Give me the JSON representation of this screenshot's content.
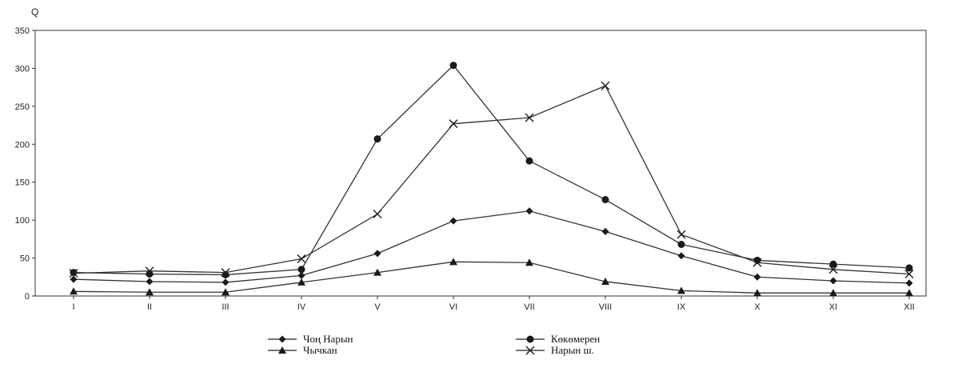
{
  "chart_data": {
    "type": "line",
    "title": "",
    "xlabel": "",
    "ylabel": "Q",
    "ylim": [
      0,
      350
    ],
    "yticks": [
      0,
      50,
      100,
      150,
      200,
      250,
      300,
      350
    ],
    "grid": false,
    "legend_position": "bottom",
    "categories": [
      "I",
      "II",
      "III",
      "IV",
      "V",
      "VI",
      "VII",
      "VIII",
      "IX",
      "X",
      "XI",
      "XII"
    ],
    "series": [
      {
        "name": "Чоң Нарын",
        "marker": "diamond",
        "values": [
          22,
          19,
          18,
          27,
          56,
          99,
          112,
          85,
          53,
          25,
          20,
          17
        ]
      },
      {
        "name": "Көкөмерен",
        "marker": "circle",
        "values": [
          31,
          29,
          28,
          35,
          207,
          304,
          178,
          127,
          68,
          47,
          42,
          37
        ]
      },
      {
        "name": "Чычкан",
        "marker": "triangle",
        "values": [
          6,
          5,
          5,
          18,
          31,
          45,
          44,
          19,
          7,
          4,
          4,
          4
        ]
      },
      {
        "name": "Нарын ш.",
        "marker": "cross",
        "values": [
          30,
          33,
          31,
          49,
          108,
          227,
          235,
          277,
          81,
          44,
          35,
          29
        ]
      }
    ]
  }
}
